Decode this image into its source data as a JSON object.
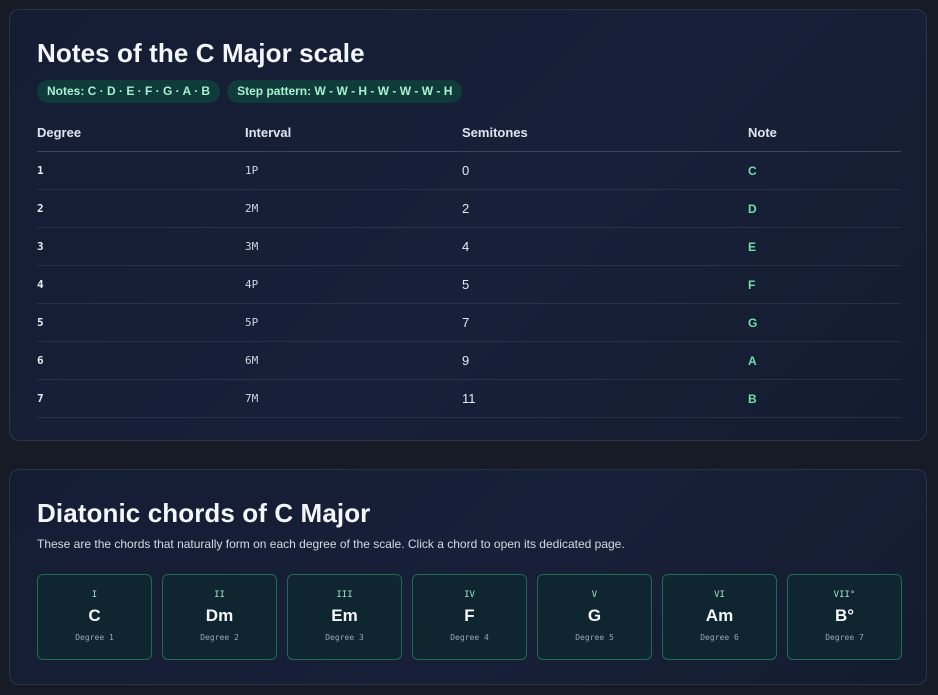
{
  "scale": {
    "title": "Notes of the C Major scale",
    "pills": [
      "Notes: C · D · E · F · G · A · B",
      "Step pattern: W - W - H - W - W - W - H"
    ],
    "columns": [
      "Degree",
      "Interval",
      "Semitones",
      "Note"
    ],
    "rows": [
      {
        "degree": "1",
        "interval": "1P",
        "semitones": "0",
        "note": "C"
      },
      {
        "degree": "2",
        "interval": "2M",
        "semitones": "2",
        "note": "D"
      },
      {
        "degree": "3",
        "interval": "3M",
        "semitones": "4",
        "note": "E"
      },
      {
        "degree": "4",
        "interval": "4P",
        "semitones": "5",
        "note": "F"
      },
      {
        "degree": "5",
        "interval": "5P",
        "semitones": "7",
        "note": "G"
      },
      {
        "degree": "6",
        "interval": "6M",
        "semitones": "9",
        "note": "A"
      },
      {
        "degree": "7",
        "interval": "7M",
        "semitones": "11",
        "note": "B"
      }
    ]
  },
  "chords": {
    "title": "Diatonic chords of C Major",
    "description": "These are the chords that naturally form on each degree of the scale. Click a chord to open its dedicated page.",
    "items": [
      {
        "roman": "I",
        "name": "C",
        "degree": "Degree 1"
      },
      {
        "roman": "II",
        "name": "Dm",
        "degree": "Degree 2"
      },
      {
        "roman": "III",
        "name": "Em",
        "degree": "Degree 3"
      },
      {
        "roman": "IV",
        "name": "F",
        "degree": "Degree 4"
      },
      {
        "roman": "V",
        "name": "G",
        "degree": "Degree 5"
      },
      {
        "roman": "VI",
        "name": "Am",
        "degree": "Degree 6"
      },
      {
        "roman": "VII°",
        "name": "B°",
        "degree": "Degree 7"
      }
    ]
  },
  "colors": {
    "accent": "#6ee0a8",
    "background": "#161b26",
    "card": "#172038"
  }
}
